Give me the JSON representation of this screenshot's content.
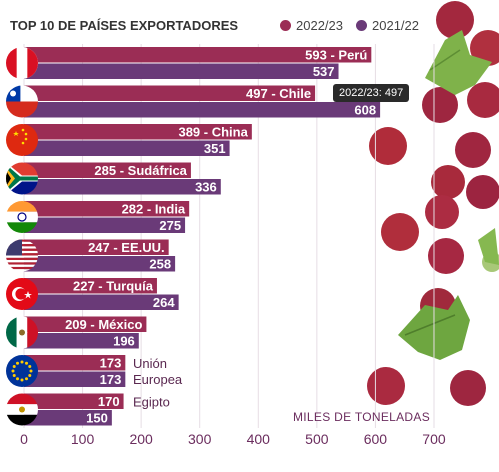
{
  "colors": {
    "series_2022_23": "#9b2d55",
    "series_2021_22": "#6a3a78",
    "axis_text": "#6b2d5e"
  },
  "decor_icon": "red-grapes-with-leaves-icon",
  "tooltip_text": "2022/23: 497",
  "chart_data": {
    "type": "bar",
    "orientation": "horizontal",
    "title": "TOP 10 DE PAÍSES EXPORTADORES",
    "xlabel": "MILES DE TONELADAS",
    "xlim": [
      0,
      700
    ],
    "x_ticks": [
      0,
      100,
      200,
      300,
      400,
      500,
      600,
      700
    ],
    "legend_position": "top-right",
    "categories": [
      "Perú",
      "Chile",
      "China",
      "Sudáfrica",
      "India",
      "EE.UU.",
      "Turquía",
      "México",
      "Unión Europea",
      "Egipto"
    ],
    "series": [
      {
        "name": "2022/23",
        "values": [
          593,
          497,
          389,
          285,
          282,
          247,
          227,
          209,
          173,
          170
        ]
      },
      {
        "name": "2021/22",
        "values": [
          537,
          608,
          351,
          336,
          275,
          258,
          264,
          196,
          173,
          150
        ]
      }
    ],
    "bar_labels_top": [
      "593 - Perú",
      "497 - Chile",
      "389 - China",
      "285 - Sudáfrica",
      "282 - India",
      "247 - EE.UU.",
      "227 - Turquía",
      "209 - México",
      "173",
      "170"
    ],
    "side_labels": [
      "",
      "",
      "",
      "",
      "",
      "",
      "",
      "",
      "Unión Europea",
      "Egipto"
    ],
    "flags": [
      "flag-peru-icon",
      "flag-chile-icon",
      "flag-china-icon",
      "flag-south-africa-icon",
      "flag-india-icon",
      "flag-usa-icon",
      "flag-turkey-icon",
      "flag-mexico-icon",
      "flag-eu-icon",
      "flag-egypt-icon"
    ]
  }
}
